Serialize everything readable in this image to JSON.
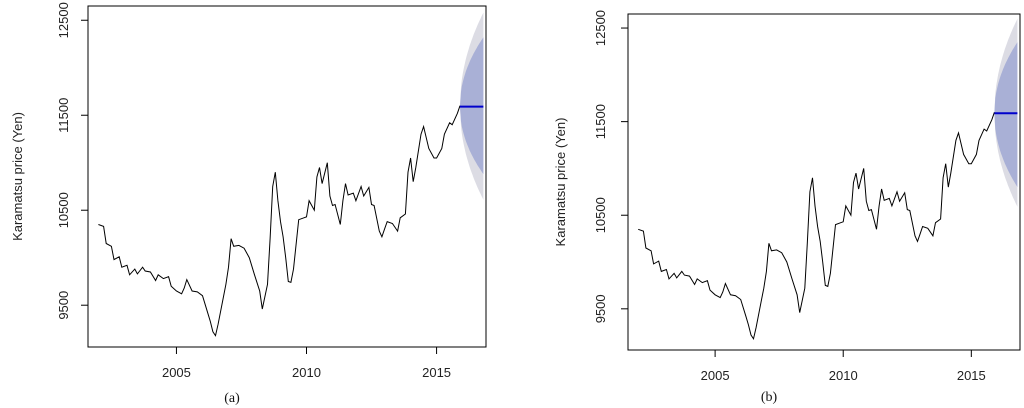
{
  "chart_data": [
    {
      "type": "line",
      "panel_label": "(a)",
      "ylabel": "Karamatsu price (Yen)",
      "xlim": [
        2001.6,
        2016.9
      ],
      "ylim": [
        9060,
        12650
      ],
      "x_ticks": [
        "2005",
        "2010",
        "2015"
      ],
      "y_ticks": [
        "9500",
        "10500",
        "11500",
        "12500"
      ],
      "colors": {
        "line": "#000000",
        "forecast": "#0000cc",
        "inner_band": "#a9b0d6",
        "outer_band": "#dcdce4"
      },
      "series": [
        {
          "values": [
            [
              2002.0,
              10350
            ],
            [
              2002.2,
              10330
            ],
            [
              2002.3,
              10150
            ],
            [
              2002.5,
              10120
            ],
            [
              2002.6,
              9980
            ],
            [
              2002.8,
              10010
            ],
            [
              2002.9,
              9900
            ],
            [
              2003.1,
              9920
            ],
            [
              2003.2,
              9820
            ],
            [
              2003.4,
              9880
            ],
            [
              2003.5,
              9830
            ],
            [
              2003.7,
              9900
            ],
            [
              2003.8,
              9860
            ],
            [
              2004.0,
              9850
            ],
            [
              2004.2,
              9760
            ],
            [
              2004.3,
              9820
            ],
            [
              2004.5,
              9780
            ],
            [
              2004.7,
              9800
            ],
            [
              2004.8,
              9700
            ],
            [
              2005.0,
              9650
            ],
            [
              2005.2,
              9620
            ],
            [
              2005.3,
              9680
            ],
            [
              2005.4,
              9770
            ],
            [
              2005.6,
              9650
            ],
            [
              2005.8,
              9640
            ],
            [
              2006.0,
              9600
            ],
            [
              2006.2,
              9420
            ],
            [
              2006.3,
              9330
            ],
            [
              2006.4,
              9220
            ],
            [
              2006.5,
              9180
            ],
            [
              2006.6,
              9300
            ],
            [
              2006.8,
              9580
            ],
            [
              2006.9,
              9720
            ],
            [
              2007.0,
              9900
            ],
            [
              2007.1,
              10200
            ],
            [
              2007.2,
              10120
            ],
            [
              2007.4,
              10130
            ],
            [
              2007.6,
              10100
            ],
            [
              2007.8,
              10000
            ],
            [
              2008.0,
              9820
            ],
            [
              2008.2,
              9650
            ],
            [
              2008.3,
              9460
            ],
            [
              2008.5,
              9720
            ],
            [
              2008.6,
              10200
            ],
            [
              2008.7,
              10750
            ],
            [
              2008.8,
              10900
            ],
            [
              2008.9,
              10600
            ],
            [
              2009.0,
              10380
            ],
            [
              2009.1,
              10220
            ],
            [
              2009.2,
              10000
            ],
            [
              2009.3,
              9750
            ],
            [
              2009.4,
              9740
            ],
            [
              2009.5,
              9880
            ],
            [
              2009.7,
              10400
            ],
            [
              2009.9,
              10420
            ],
            [
              2010.0,
              10430
            ],
            [
              2010.1,
              10600
            ],
            [
              2010.3,
              10500
            ],
            [
              2010.4,
              10850
            ],
            [
              2010.5,
              10950
            ],
            [
              2010.6,
              10780
            ],
            [
              2010.8,
              11000
            ],
            [
              2010.9,
              10650
            ],
            [
              2011.0,
              10550
            ],
            [
              2011.1,
              10560
            ],
            [
              2011.3,
              10350
            ],
            [
              2011.4,
              10600
            ],
            [
              2011.5,
              10780
            ],
            [
              2011.6,
              10660
            ],
            [
              2011.8,
              10680
            ],
            [
              2011.9,
              10600
            ],
            [
              2012.1,
              10750
            ],
            [
              2012.2,
              10650
            ],
            [
              2012.4,
              10740
            ],
            [
              2012.5,
              10560
            ],
            [
              2012.6,
              10550
            ],
            [
              2012.8,
              10280
            ],
            [
              2012.9,
              10220
            ],
            [
              2013.0,
              10300
            ],
            [
              2013.1,
              10380
            ],
            [
              2013.3,
              10360
            ],
            [
              2013.5,
              10280
            ],
            [
              2013.6,
              10420
            ],
            [
              2013.8,
              10460
            ],
            [
              2013.9,
              10900
            ],
            [
              2014.0,
              11050
            ],
            [
              2014.1,
              10800
            ],
            [
              2014.2,
              10950
            ],
            [
              2014.4,
              11300
            ],
            [
              2014.5,
              11380
            ],
            [
              2014.7,
              11150
            ],
            [
              2014.9,
              11050
            ],
            [
              2015.0,
              11050
            ],
            [
              2015.2,
              11150
            ],
            [
              2015.3,
              11300
            ],
            [
              2015.5,
              11420
            ],
            [
              2015.6,
              11400
            ],
            [
              2015.8,
              11520
            ],
            [
              2015.9,
              11600
            ]
          ]
        }
      ],
      "forecast": {
        "x": [
          2015.9,
          2016.8
        ],
        "mean": 11590,
        "band80": {
          "upper": [
            11600,
            12320
          ],
          "lower": [
            11580,
            10880
          ]
        },
        "band95": {
          "upper": [
            11600,
            12580
          ],
          "lower": [
            11580,
            10610
          ]
        }
      }
    },
    {
      "type": "line",
      "panel_label": "(b)",
      "ylabel": "Karamatsu price (Yen)",
      "xlim": [
        2001.6,
        2016.9
      ],
      "ylim": [
        9060,
        12650
      ],
      "x_ticks": [
        "2005",
        "2010",
        "2015"
      ],
      "y_ticks": [
        "9500",
        "10500",
        "11500",
        "12500"
      ],
      "colors": {
        "line": "#000000",
        "forecast": "#0000cc",
        "inner_band": "#a9b0d6",
        "outer_band": "#dcdce4"
      },
      "series": [
        {
          "values": [
            [
              2002.0,
              10350
            ],
            [
              2002.2,
              10330
            ],
            [
              2002.3,
              10150
            ],
            [
              2002.5,
              10120
            ],
            [
              2002.6,
              9980
            ],
            [
              2002.8,
              10010
            ],
            [
              2002.9,
              9900
            ],
            [
              2003.1,
              9920
            ],
            [
              2003.2,
              9820
            ],
            [
              2003.4,
              9880
            ],
            [
              2003.5,
              9830
            ],
            [
              2003.7,
              9900
            ],
            [
              2003.8,
              9860
            ],
            [
              2004.0,
              9850
            ],
            [
              2004.2,
              9760
            ],
            [
              2004.3,
              9820
            ],
            [
              2004.5,
              9780
            ],
            [
              2004.7,
              9800
            ],
            [
              2004.8,
              9700
            ],
            [
              2005.0,
              9650
            ],
            [
              2005.2,
              9620
            ],
            [
              2005.3,
              9680
            ],
            [
              2005.4,
              9770
            ],
            [
              2005.6,
              9650
            ],
            [
              2005.8,
              9640
            ],
            [
              2006.0,
              9600
            ],
            [
              2006.2,
              9420
            ],
            [
              2006.3,
              9330
            ],
            [
              2006.4,
              9220
            ],
            [
              2006.5,
              9180
            ],
            [
              2006.6,
              9300
            ],
            [
              2006.8,
              9580
            ],
            [
              2006.9,
              9720
            ],
            [
              2007.0,
              9900
            ],
            [
              2007.1,
              10200
            ],
            [
              2007.2,
              10120
            ],
            [
              2007.4,
              10130
            ],
            [
              2007.6,
              10100
            ],
            [
              2007.8,
              10000
            ],
            [
              2008.0,
              9820
            ],
            [
              2008.2,
              9650
            ],
            [
              2008.3,
              9460
            ],
            [
              2008.5,
              9720
            ],
            [
              2008.6,
              10200
            ],
            [
              2008.7,
              10750
            ],
            [
              2008.8,
              10900
            ],
            [
              2008.9,
              10600
            ],
            [
              2009.0,
              10380
            ],
            [
              2009.1,
              10220
            ],
            [
              2009.2,
              10000
            ],
            [
              2009.3,
              9750
            ],
            [
              2009.4,
              9740
            ],
            [
              2009.5,
              9880
            ],
            [
              2009.7,
              10400
            ],
            [
              2009.9,
              10420
            ],
            [
              2010.0,
              10430
            ],
            [
              2010.1,
              10600
            ],
            [
              2010.3,
              10500
            ],
            [
              2010.4,
              10850
            ],
            [
              2010.5,
              10950
            ],
            [
              2010.6,
              10780
            ],
            [
              2010.8,
              11000
            ],
            [
              2010.9,
              10650
            ],
            [
              2011.0,
              10550
            ],
            [
              2011.1,
              10560
            ],
            [
              2011.3,
              10350
            ],
            [
              2011.4,
              10600
            ],
            [
              2011.5,
              10780
            ],
            [
              2011.6,
              10660
            ],
            [
              2011.8,
              10680
            ],
            [
              2011.9,
              10600
            ],
            [
              2012.1,
              10750
            ],
            [
              2012.2,
              10650
            ],
            [
              2012.4,
              10740
            ],
            [
              2012.5,
              10560
            ],
            [
              2012.6,
              10550
            ],
            [
              2012.8,
              10280
            ],
            [
              2012.9,
              10220
            ],
            [
              2013.0,
              10300
            ],
            [
              2013.1,
              10380
            ],
            [
              2013.3,
              10360
            ],
            [
              2013.5,
              10280
            ],
            [
              2013.6,
              10420
            ],
            [
              2013.8,
              10460
            ],
            [
              2013.9,
              10900
            ],
            [
              2014.0,
              11050
            ],
            [
              2014.1,
              10800
            ],
            [
              2014.2,
              10950
            ],
            [
              2014.4,
              11300
            ],
            [
              2014.5,
              11380
            ],
            [
              2014.7,
              11150
            ],
            [
              2014.9,
              11050
            ],
            [
              2015.0,
              11050
            ],
            [
              2015.2,
              11150
            ],
            [
              2015.3,
              11300
            ],
            [
              2015.5,
              11420
            ],
            [
              2015.6,
              11400
            ],
            [
              2015.8,
              11520
            ],
            [
              2015.9,
              11600
            ]
          ]
        }
      ],
      "forecast": {
        "x": [
          2015.9,
          2016.8
        ],
        "mean": 11590,
        "band80": {
          "upper": [
            11600,
            12350
          ],
          "lower": [
            11580,
            10800
          ]
        },
        "band95": {
          "upper": [
            11600,
            12600
          ],
          "lower": [
            11580,
            10590
          ]
        }
      }
    }
  ]
}
